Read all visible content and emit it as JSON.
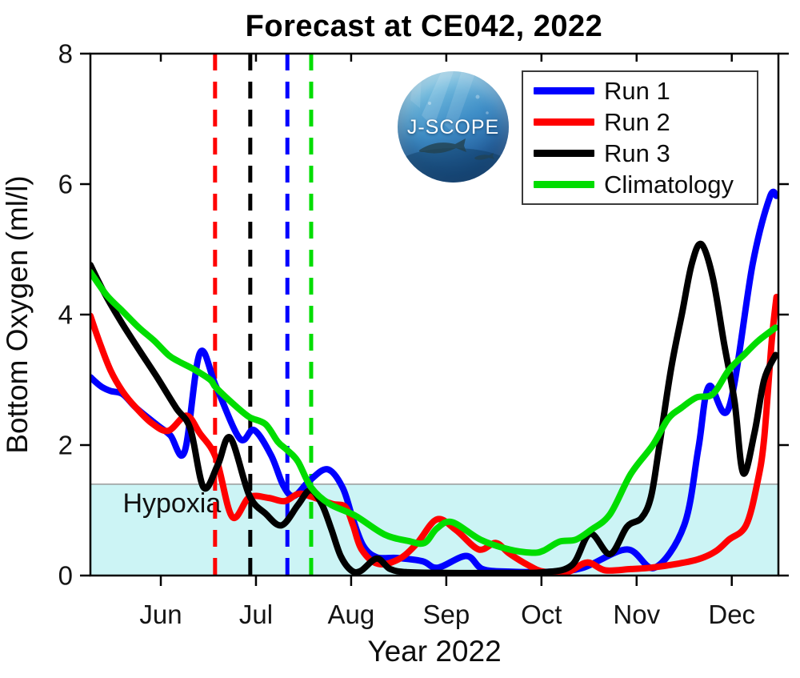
{
  "title": "Forecast at CE042, 2022",
  "logo": {
    "text": "J-SCOPE"
  },
  "legend": {
    "position": "upper right",
    "items": [
      {
        "label": "Run 1",
        "color": "#0000ff"
      },
      {
        "label": "Run 2",
        "color": "#ff0000"
      },
      {
        "label": "Run 3",
        "color": "#000000"
      },
      {
        "label": "Climatology",
        "color": "#00dd00"
      }
    ]
  },
  "chart_data": {
    "type": "line",
    "title": "Forecast at CE042, 2022",
    "xlabel": "Year 2022",
    "ylabel": "Bottom Oxygen (ml/l)",
    "x_unit": "month-of-2022 (6 = Jun 1, 7 = Jul 1, ... 12 = Dec 1)",
    "x_range": [
      5.26,
      12.49
    ],
    "ylim": [
      0,
      8
    ],
    "grid": false,
    "y_ticks": [
      {
        "pos": 0,
        "label": "0"
      },
      {
        "pos": 2,
        "label": "2"
      },
      {
        "pos": 4,
        "label": "4"
      },
      {
        "pos": 6,
        "label": "6"
      },
      {
        "pos": 8,
        "label": "8"
      }
    ],
    "x_ticks": [
      {
        "pos": 6,
        "label": "Jun"
      },
      {
        "pos": 7,
        "label": "Jul"
      },
      {
        "pos": 8,
        "label": "Aug"
      },
      {
        "pos": 9,
        "label": "Sep"
      },
      {
        "pos": 10,
        "label": "Oct"
      },
      {
        "pos": 11,
        "label": "Nov"
      },
      {
        "pos": 12,
        "label": "Dec"
      }
    ],
    "hypoxia": {
      "label": "Hypoxia",
      "threshold": 1.4,
      "band_color": "#ccf4f5",
      "edge_color": "#999999",
      "label_pos": {
        "x": 5.6,
        "y": 1.08
      }
    },
    "init_lines": [
      {
        "name": "run-2-init",
        "color": "#ff0000",
        "x": 6.57
      },
      {
        "name": "run-3-init",
        "color": "#000000",
        "x": 6.94
      },
      {
        "name": "run-1-init",
        "color": "#0000ff",
        "x": 7.33
      },
      {
        "name": "climatology-mark",
        "color": "#00dd00",
        "x": 7.58
      }
    ],
    "series": [
      {
        "name": "Run 1",
        "color": "#0000ff",
        "points": [
          [
            5.26,
            3.04
          ],
          [
            5.37,
            2.9
          ],
          [
            5.47,
            2.83
          ],
          [
            5.6,
            2.78
          ],
          [
            5.74,
            2.57
          ],
          [
            5.96,
            2.31
          ],
          [
            6.1,
            2.15
          ],
          [
            6.25,
            1.9
          ],
          [
            6.41,
            3.41
          ],
          [
            6.58,
            2.9
          ],
          [
            6.83,
            2.1
          ],
          [
            6.98,
            2.23
          ],
          [
            7.16,
            1.84
          ],
          [
            7.29,
            1.37
          ],
          [
            7.4,
            1.22
          ],
          [
            7.56,
            1.45
          ],
          [
            7.75,
            1.63
          ],
          [
            7.91,
            1.35
          ],
          [
            8.02,
            0.86
          ],
          [
            8.13,
            0.45
          ],
          [
            8.27,
            0.28
          ],
          [
            8.48,
            0.27
          ],
          [
            8.75,
            0.22
          ],
          [
            8.91,
            0.12
          ],
          [
            9.21,
            0.3
          ],
          [
            9.38,
            0.1
          ],
          [
            9.66,
            0.06
          ],
          [
            10.11,
            0.06
          ],
          [
            10.44,
            0.12
          ],
          [
            10.9,
            0.4
          ],
          [
            11.19,
            0.12
          ],
          [
            11.5,
            0.77
          ],
          [
            11.65,
            1.96
          ],
          [
            11.76,
            2.9
          ],
          [
            11.97,
            2.57
          ],
          [
            12.22,
            4.78
          ],
          [
            12.4,
            5.8
          ],
          [
            12.47,
            5.82
          ]
        ]
      },
      {
        "name": "Run 2",
        "color": "#ff0000",
        "points": [
          [
            5.26,
            3.98
          ],
          [
            5.35,
            3.6
          ],
          [
            5.47,
            3.15
          ],
          [
            5.6,
            2.82
          ],
          [
            5.74,
            2.57
          ],
          [
            5.91,
            2.33
          ],
          [
            6.08,
            2.22
          ],
          [
            6.27,
            2.45
          ],
          [
            6.41,
            2.18
          ],
          [
            6.58,
            1.8
          ],
          [
            6.75,
            0.9
          ],
          [
            6.93,
            1.2
          ],
          [
            7.13,
            1.19
          ],
          [
            7.3,
            1.14
          ],
          [
            7.44,
            1.25
          ],
          [
            7.56,
            1.22
          ],
          [
            7.8,
            1.1
          ],
          [
            7.94,
            1.05
          ],
          [
            8.02,
            0.77
          ],
          [
            8.11,
            0.4
          ],
          [
            8.28,
            0.18
          ],
          [
            8.5,
            0.25
          ],
          [
            8.69,
            0.49
          ],
          [
            8.9,
            0.86
          ],
          [
            9.1,
            0.7
          ],
          [
            9.34,
            0.4
          ],
          [
            9.52,
            0.5
          ],
          [
            9.66,
            0.34
          ],
          [
            9.86,
            0.16
          ],
          [
            10.02,
            0.06
          ],
          [
            10.27,
            0.05
          ],
          [
            10.48,
            0.2
          ],
          [
            10.67,
            0.08
          ],
          [
            10.94,
            0.1
          ],
          [
            11.15,
            0.12
          ],
          [
            11.43,
            0.18
          ],
          [
            11.65,
            0.25
          ],
          [
            11.83,
            0.37
          ],
          [
            11.97,
            0.55
          ],
          [
            12.15,
            0.77
          ],
          [
            12.27,
            1.43
          ],
          [
            12.34,
            2.1
          ],
          [
            12.42,
            3.6
          ],
          [
            12.47,
            4.27
          ]
        ]
      },
      {
        "name": "Run 3",
        "color": "#000000",
        "points": [
          [
            5.26,
            4.76
          ],
          [
            5.4,
            4.35
          ],
          [
            5.57,
            3.92
          ],
          [
            5.74,
            3.53
          ],
          [
            5.96,
            3.04
          ],
          [
            6.16,
            2.57
          ],
          [
            6.31,
            2.25
          ],
          [
            6.45,
            1.35
          ],
          [
            6.6,
            1.7
          ],
          [
            6.73,
            2.11
          ],
          [
            6.93,
            1.23
          ],
          [
            7.1,
            0.95
          ],
          [
            7.27,
            0.77
          ],
          [
            7.44,
            1.08
          ],
          [
            7.57,
            1.31
          ],
          [
            7.69,
            1.1
          ],
          [
            7.79,
            0.72
          ],
          [
            7.89,
            0.3
          ],
          [
            8.0,
            0.08
          ],
          [
            8.1,
            0.07
          ],
          [
            8.27,
            0.26
          ],
          [
            8.41,
            0.1
          ],
          [
            8.6,
            0.05
          ],
          [
            9.02,
            0.04
          ],
          [
            9.52,
            0.04
          ],
          [
            10.02,
            0.05
          ],
          [
            10.32,
            0.16
          ],
          [
            10.51,
            0.64
          ],
          [
            10.72,
            0.33
          ],
          [
            10.9,
            0.75
          ],
          [
            11.05,
            0.88
          ],
          [
            11.15,
            1.2
          ],
          [
            11.23,
            1.9
          ],
          [
            11.36,
            3.15
          ],
          [
            11.48,
            4.04
          ],
          [
            11.58,
            4.78
          ],
          [
            11.68,
            5.08
          ],
          [
            11.8,
            4.57
          ],
          [
            11.92,
            3.55
          ],
          [
            12.03,
            2.66
          ],
          [
            12.12,
            1.57
          ],
          [
            12.24,
            2.2
          ],
          [
            12.34,
            3.0
          ],
          [
            12.46,
            3.38
          ]
        ]
      },
      {
        "name": "Climatology",
        "color": "#00dd00",
        "points": [
          [
            5.26,
            4.65
          ],
          [
            5.43,
            4.3
          ],
          [
            5.6,
            4.05
          ],
          [
            5.77,
            3.8
          ],
          [
            5.93,
            3.6
          ],
          [
            6.08,
            3.38
          ],
          [
            6.19,
            3.28
          ],
          [
            6.35,
            3.16
          ],
          [
            6.52,
            3.0
          ],
          [
            6.58,
            2.88
          ],
          [
            6.77,
            2.62
          ],
          [
            6.93,
            2.43
          ],
          [
            7.1,
            2.32
          ],
          [
            7.23,
            2.05
          ],
          [
            7.33,
            1.92
          ],
          [
            7.44,
            1.75
          ],
          [
            7.58,
            1.35
          ],
          [
            7.77,
            1.1
          ],
          [
            8.04,
            0.92
          ],
          [
            8.35,
            0.63
          ],
          [
            8.6,
            0.53
          ],
          [
            8.77,
            0.5
          ],
          [
            8.9,
            0.72
          ],
          [
            9.06,
            0.82
          ],
          [
            9.36,
            0.55
          ],
          [
            9.66,
            0.4
          ],
          [
            9.9,
            0.35
          ],
          [
            10.02,
            0.38
          ],
          [
            10.19,
            0.52
          ],
          [
            10.36,
            0.55
          ],
          [
            10.52,
            0.7
          ],
          [
            10.72,
            0.94
          ],
          [
            10.94,
            1.56
          ],
          [
            11.17,
            2.0
          ],
          [
            11.33,
            2.4
          ],
          [
            11.47,
            2.57
          ],
          [
            11.63,
            2.73
          ],
          [
            11.8,
            2.78
          ],
          [
            11.97,
            3.15
          ],
          [
            12.14,
            3.4
          ],
          [
            12.28,
            3.6
          ],
          [
            12.46,
            3.8
          ]
        ]
      }
    ]
  }
}
